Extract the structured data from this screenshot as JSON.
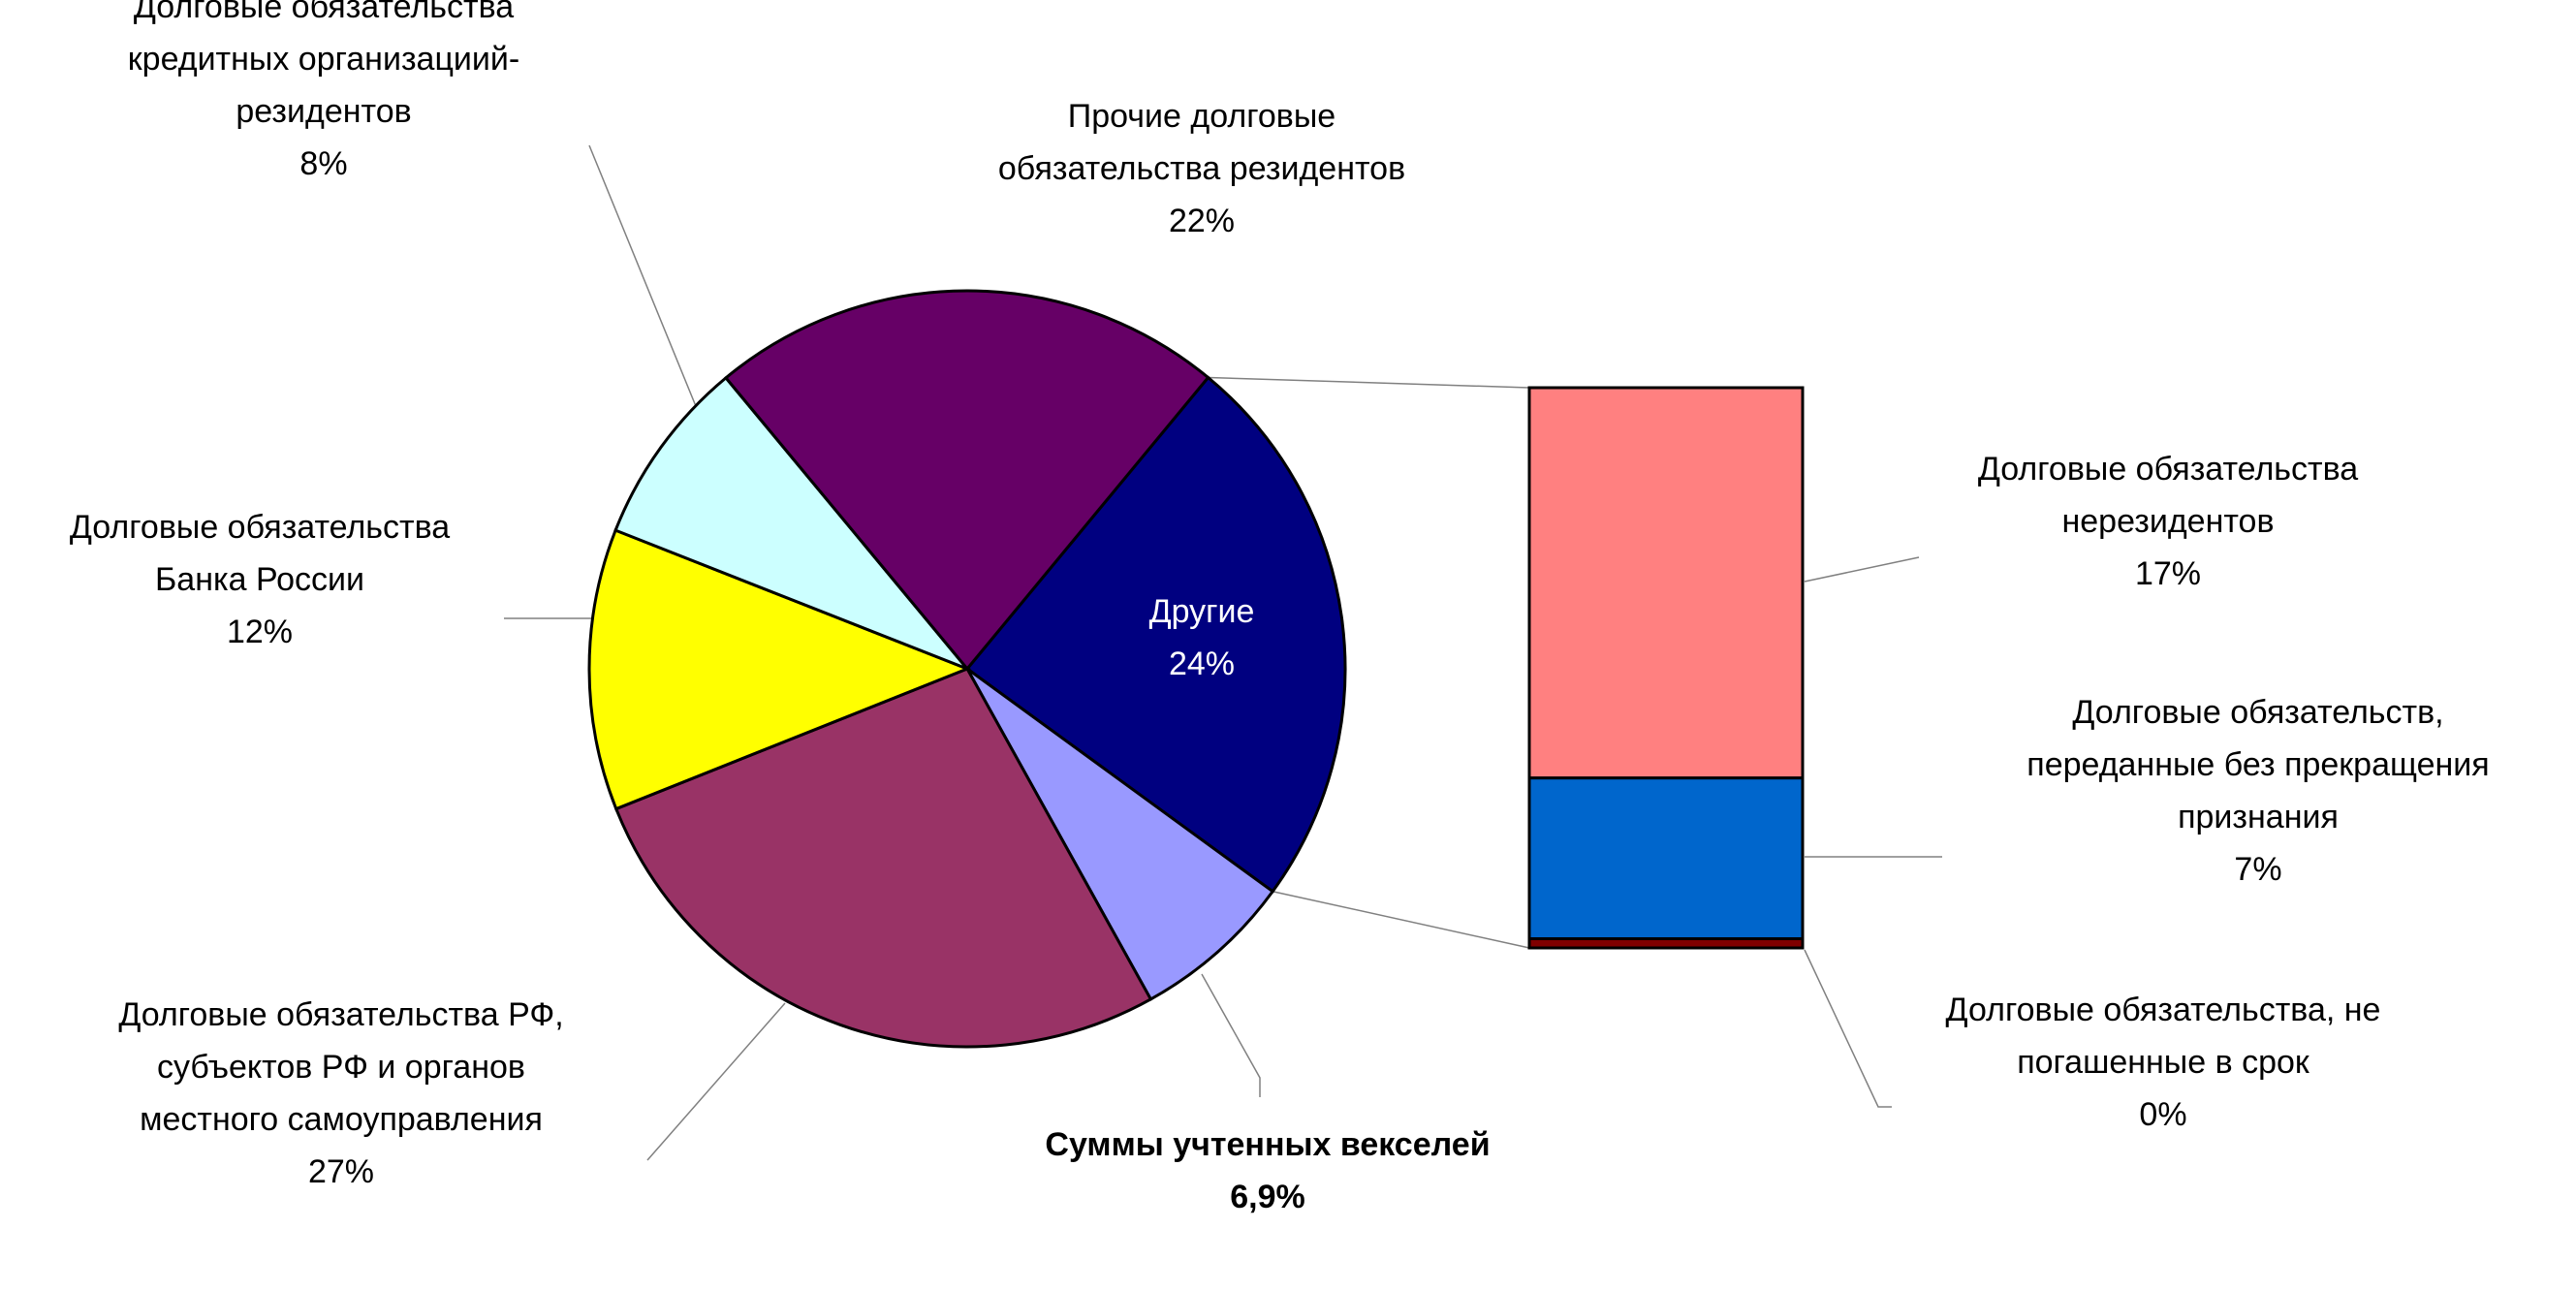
{
  "chart_data": {
    "type": "pie-of-bar",
    "pie": [
      {
        "key": "other",
        "label_lines": [
          "Другие"
        ],
        "value_text": "24%",
        "value": 24,
        "color": "#000080"
      },
      {
        "key": "bills",
        "label_lines": [
          "Суммы учтенных векселей"
        ],
        "value_text": "6,9%",
        "value": 6.9,
        "color": "#9999FF"
      },
      {
        "key": "rf",
        "label_lines": [
          "Долговые обязательства РФ,",
          "субъектов РФ и органов",
          "местного самоуправления"
        ],
        "value_text": "27%",
        "value": 27,
        "color": "#993366"
      },
      {
        "key": "cbr",
        "label_lines": [
          "Долговые обязательства",
          "Банка России"
        ],
        "value_text": "12%",
        "value": 12,
        "color": "#FFFF00"
      },
      {
        "key": "credit",
        "label_lines": [
          "Долговые обязательства",
          "кредитных организациий-",
          "резидентов"
        ],
        "value_text": "8%",
        "value": 8,
        "color": "#CCFFFF"
      },
      {
        "key": "resid",
        "label_lines": [
          "Прочие долговые",
          "обязательства резидентов"
        ],
        "value_text": "22%",
        "value": 22,
        "color": "#660066"
      }
    ],
    "bar": [
      {
        "key": "nonres",
        "label_lines": [
          "Долговые обязательства",
          "нерезидентов"
        ],
        "value_text": "17%",
        "value": 17,
        "color": "#FF8080"
      },
      {
        "key": "transferred",
        "label_lines": [
          "Долговые обязательств,",
          "переданные без прекращения",
          "признания"
        ],
        "value_text": "7%",
        "value": 7,
        "color": "#0066CC"
      },
      {
        "key": "overdue",
        "label_lines": [
          "Долговые обязательства, не",
          "погашенные в срок"
        ],
        "value_text": "0%",
        "value": 0.4,
        "color": "#800000"
      }
    ]
  }
}
